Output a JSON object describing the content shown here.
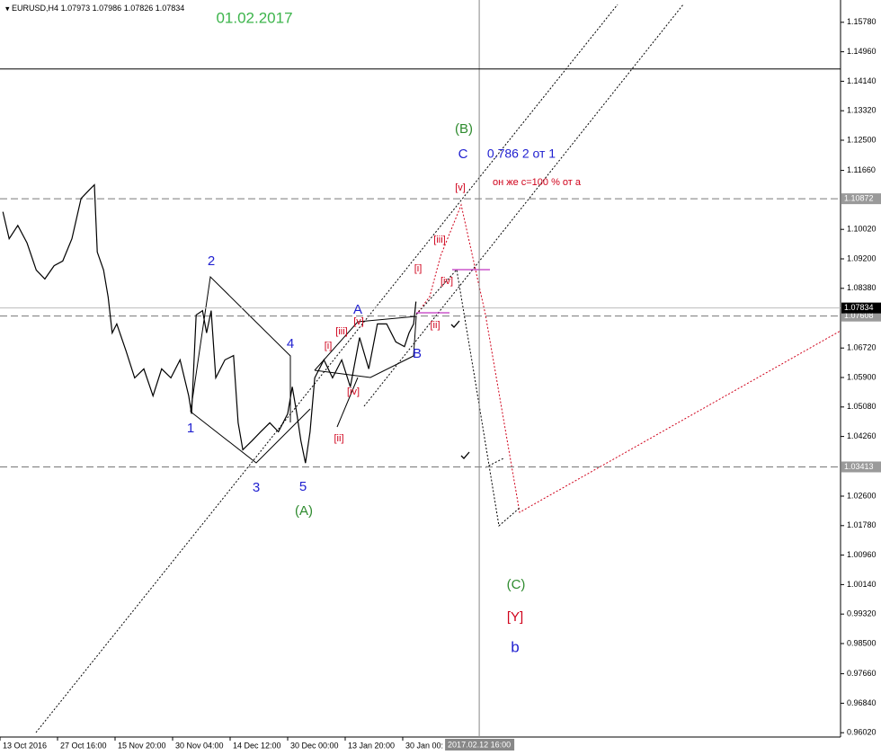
{
  "chart_data": {
    "type": "line",
    "symbol": "EURUSD,H4",
    "ohlc": [
      1.07973,
      1.07986,
      1.07826,
      1.07834
    ],
    "title": "01.02.2017",
    "color": "#000000",
    "x": [
      0.5,
      1.6,
      3.1,
      4.7,
      6.3,
      7.8,
      9.4,
      10.9,
      12.5,
      14.1,
      15.6,
      16.4,
      16.9,
      18,
      18.8,
      19.5,
      20.3,
      21.9,
      23.4,
      25,
      26.6,
      28.1,
      29.7,
      31.3,
      32.8,
      33.3,
      34.1,
      35.2,
      35.9,
      36.7,
      37.5,
      39.1,
      40.6,
      41.4,
      42.2,
      43.8,
      45.3,
      46.9,
      48.4,
      50,
      50.8,
      51.6,
      52.3,
      53.1,
      53.9,
      54.7,
      56.3,
      57.8,
      59.4,
      60.9,
      62.5,
      64.1,
      65.6,
      67.2,
      68.8,
      70.3,
      71.1,
      71.9,
      72.3
    ],
    "values": [
      1.1051,
      1.0976,
      1.1013,
      1.0964,
      1.0889,
      1.0864,
      1.0901,
      1.0914,
      1.0976,
      1.1088,
      1.1113,
      1.1126,
      1.0939,
      1.0889,
      1.0814,
      1.0714,
      1.0739,
      1.0664,
      1.0589,
      1.0614,
      1.0539,
      1.0614,
      1.0589,
      1.0639,
      1.0539,
      1.0489,
      1.0764,
      1.0776,
      1.0714,
      1.0776,
      1.0589,
      1.0639,
      1.0651,
      1.0464,
      1.0389,
      1.0414,
      1.0439,
      1.0464,
      1.0439,
      1.0489,
      1.0564,
      1.0489,
      1.0414,
      1.0352,
      1.0439,
      1.0589,
      1.0639,
      1.0589,
      1.0639,
      1.0564,
      1.0701,
      1.0614,
      1.0739,
      1.0739,
      1.0689,
      1.0676,
      1.0714,
      1.0739,
      1.0801
    ],
    "xlim": [
      0,
      146.1
    ],
    "xticks": [
      {
        "value": 0,
        "label": "13 Oct 2016"
      },
      {
        "value": 10,
        "label": "27 Oct 16:00"
      },
      {
        "value": 20,
        "label": "15 Nov 20:00"
      },
      {
        "value": 30,
        "label": "30 Nov 04:00"
      },
      {
        "value": 40,
        "label": "14 Dec 12:00"
      },
      {
        "value": 50,
        "label": "30 Dec 00:00"
      },
      {
        "value": 60,
        "label": "13 Jan 20:00"
      },
      {
        "value": 70,
        "label": "30 Jan 00:"
      }
    ],
    "ylim": [
      0.959,
      1.163
    ],
    "yticks": [
      {
        "value": 1.1578,
        "label": "1.15780"
      },
      {
        "value": 1.1496,
        "label": "1.14960"
      },
      {
        "value": 1.1414,
        "label": "1.14140"
      },
      {
        "value": 1.1332,
        "label": "1.13320"
      },
      {
        "value": 1.125,
        "label": "1.12500"
      },
      {
        "value": 1.1166,
        "label": "1.11660"
      },
      {
        "value": 1.1002,
        "label": "1.10020"
      },
      {
        "value": 1.092,
        "label": "1.09200"
      },
      {
        "value": 1.0838,
        "label": "1.08380"
      },
      {
        "value": 1.0672,
        "label": "1.06720"
      },
      {
        "value": 1.059,
        "label": "1.05900"
      },
      {
        "value": 1.0508,
        "label": "1.05080"
      },
      {
        "value": 1.0426,
        "label": "1.04260"
      },
      {
        "value": 1.026,
        "label": "1.02600"
      },
      {
        "value": 1.0178,
        "label": "1.01780"
      },
      {
        "value": 1.0096,
        "label": "1.00960"
      },
      {
        "value": 1.0014,
        "label": "1.00140"
      },
      {
        "value": 0.9932,
        "label": "0.99320"
      },
      {
        "value": 0.985,
        "label": "0.98500"
      },
      {
        "value": 0.9766,
        "label": "0.97660"
      },
      {
        "value": 0.9684,
        "label": "0.96840"
      },
      {
        "value": 0.9602,
        "label": "0.96020"
      }
    ],
    "levels": [
      1.10872,
      1.07608,
      1.03413
    ],
    "current_price": 1.07834,
    "crosshair": {
      "x": 83.3,
      "y": 1.1448,
      "label": "2017.02.12 16:00"
    },
    "annotations": [
      {
        "text": "(B)",
        "color": "#2e8b2e"
      },
      {
        "text": "C",
        "color": "#1f1fd0"
      },
      {
        "text": "0.786 2 от 1",
        "color": "#1f1fd0"
      },
      {
        "text": "он же c=100 % от а",
        "color": "#d0021b"
      },
      {
        "text": "[v]",
        "color": "#d0021b"
      },
      {
        "text": "[iii]",
        "color": "#d0021b"
      },
      {
        "text": "[i]",
        "color": "#d0021b"
      },
      {
        "text": "[iv]",
        "color": "#d0021b"
      },
      {
        "text": "[ii]",
        "color": "#d0021b"
      },
      {
        "text": "A",
        "color": "#1f1fd0"
      },
      {
        "text": "[v]",
        "color": "#d0021b"
      },
      {
        "text": "[iii]",
        "color": "#d0021b"
      },
      {
        "text": "[i]",
        "color": "#d0021b"
      },
      {
        "text": "B",
        "color": "#1f1fd0"
      },
      {
        "text": "[iv]",
        "color": "#d0021b"
      },
      {
        "text": "[ii]",
        "color": "#d0021b"
      },
      {
        "text": "2",
        "color": "#1f1fd0"
      },
      {
        "text": "4",
        "color": "#1f1fd0"
      },
      {
        "text": "1",
        "color": "#1f1fd0"
      },
      {
        "text": "3",
        "color": "#1f1fd0"
      },
      {
        "text": "5",
        "color": "#1f1fd0"
      },
      {
        "text": "(A)",
        "color": "#2e8b2e"
      },
      {
        "text": "(C)",
        "color": "#2e8b2e"
      },
      {
        "text": "[Y]",
        "color": "#d0021b"
      },
      {
        "text": "b",
        "color": "#1f1fd0"
      }
    ]
  }
}
